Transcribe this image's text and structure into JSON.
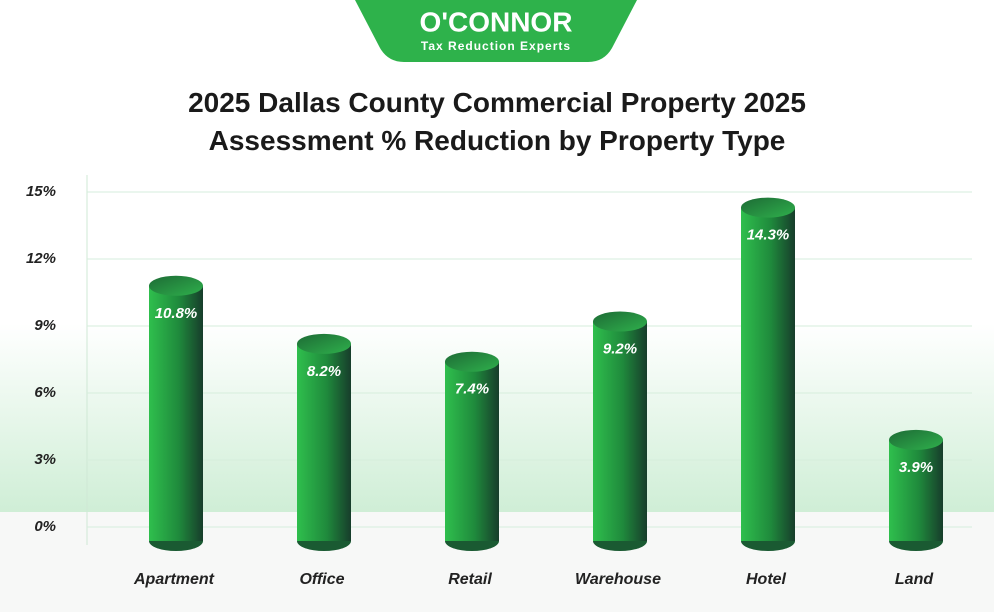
{
  "logo": {
    "name": "O'CONNOR",
    "tagline": "Tax Reduction Experts"
  },
  "chart_data": {
    "type": "bar",
    "title": "2025 Dallas County Commercial Property 2025 Assessment % Reduction by Property Type",
    "categories": [
      "Apartment",
      "Office",
      "Retail",
      "Warehouse",
      "Hotel",
      "Land"
    ],
    "values": [
      10.8,
      8.2,
      7.4,
      9.2,
      14.3,
      3.9
    ],
    "value_labels": [
      "10.8%",
      "8.2%",
      "7.4%",
      "9.2%",
      "14.3%",
      "3.9%"
    ],
    "color": "#2aa845",
    "ylim": [
      0,
      15
    ],
    "yticks": [
      {
        "value": 0,
        "label": "0%"
      },
      {
        "value": 3,
        "label": "3%"
      },
      {
        "value": 6,
        "label": "6%"
      },
      {
        "value": 9,
        "label": "9%"
      },
      {
        "value": 12,
        "label": "12%"
      },
      {
        "value": 15,
        "label": "15%"
      }
    ],
    "grid": true
  }
}
